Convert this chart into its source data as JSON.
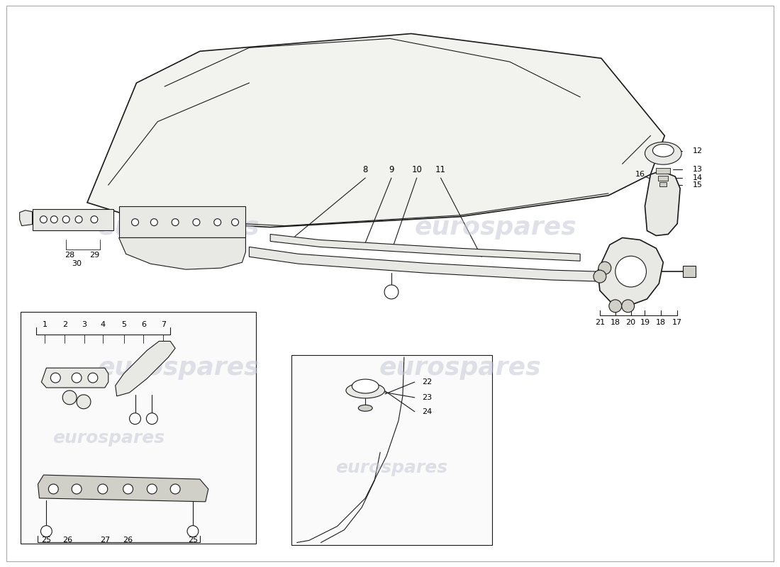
{
  "background_color": "#ffffff",
  "line_color": "#1a1a1a",
  "label_color": "#000000",
  "watermark_text": "eurospares",
  "watermark_color": "#c8c8d8",
  "font_size_labels": 8.5,
  "font_size_watermark": 26,
  "roof_fill": "#f2f2ee",
  "part_fill": "#e8e8e4",
  "part_fill_dark": "#d0d0c8",
  "inset_bg": "#fafafa"
}
